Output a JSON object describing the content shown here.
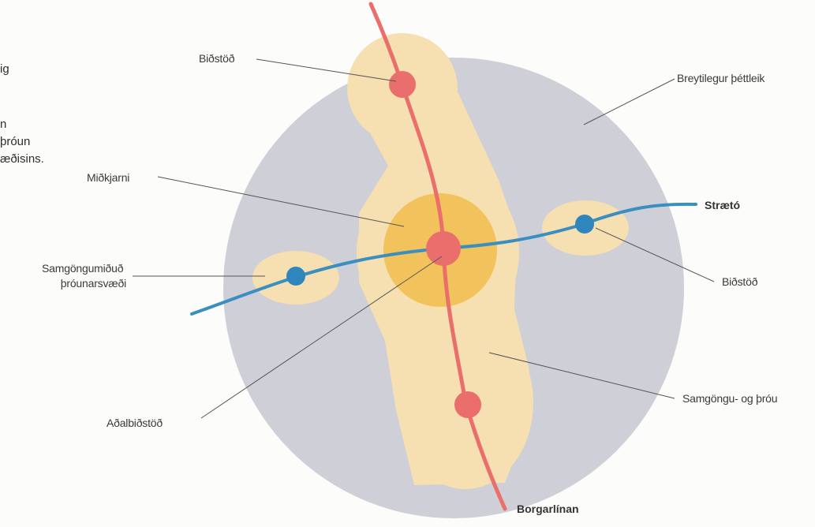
{
  "side_text": [
    "ig",
    "n",
    "þróun",
    "æðisins."
  ],
  "labels": {
    "bidstod_top": "Biðstöð",
    "breytilegur": "Breytilegur þéttleik",
    "midkjarni": "Miðkjarni",
    "straeto": "Strætó",
    "samgongumidud_line1": "Samgöngumiðuð",
    "samgongumidud_line2": "þróunarsvæði",
    "bidstod_right": "Biðstöð",
    "adalbidstod": "Aðalbiðstöð",
    "samgongu_og_throu": "Samgöngu- og þróu",
    "borgarlinan": "Borgarlínan"
  },
  "colors": {
    "outer_circle": "#cfcfd8",
    "zone": "#f6dfb0",
    "core": "#f2c25c",
    "brt_line": "#ea6f6c",
    "bus_line": "#3a8fc0",
    "bus_stop": "#2f86bd"
  }
}
